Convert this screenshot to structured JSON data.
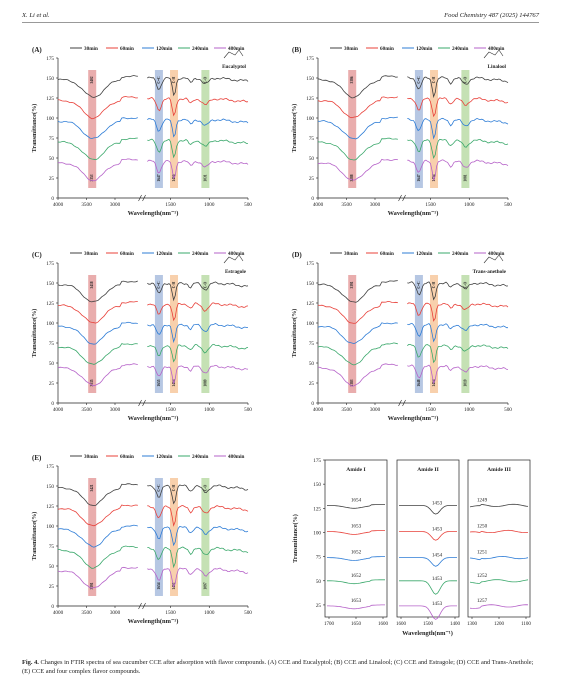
{
  "header": {
    "left": "X. Li et al.",
    "right": "Food Chemistry 487 (2025) 144767"
  },
  "legend_times": [
    "30min",
    "60min",
    "120min",
    "240min",
    "480min"
  ],
  "colors": {
    "series": [
      "#404040",
      "#e8413a",
      "#2d7cd6",
      "#3aa86b",
      "#b663c9"
    ],
    "band_red": "#d45b5b",
    "band_blue": "#6e90c8",
    "band_orange": "#f2a25a",
    "band_green": "#8cc46a"
  },
  "axis": {
    "ylabel": "Transmittance(%)",
    "xlabel": "Wavelength(nm⁻¹)",
    "yticks": [
      "0",
      "25",
      "50",
      "75",
      "100",
      "125",
      "150",
      "175"
    ],
    "xticks_left": [
      "4000",
      "3500",
      "3000"
    ],
    "xticks_right": [
      "1500",
      "1000",
      "500"
    ]
  },
  "panels": [
    {
      "letter": "(A)",
      "compound": "Eucalyptol",
      "oh_top": "3402",
      "oh_bot": "3353",
      "c1_top": "C=C",
      "c1_bot": "1647",
      "c2_top": "C-H",
      "c2_bot": "1456",
      "c3_top": "C-O",
      "c3_bot": "1031"
    },
    {
      "letter": "(B)",
      "compound": "Linalool",
      "oh_top": "3386",
      "oh_bot": "3288",
      "c1_top": "C=C",
      "c1_bot": "1647",
      "c2_top": "C-H",
      "c2_bot": "1454",
      "c3_top": "C-O",
      "c3_bot": "1081"
    },
    {
      "letter": "(C)",
      "compound": "Estragole",
      "oh_top": "3418",
      "oh_bot": "3335",
      "c1_top": "C=C",
      "c1_bot": "1655",
      "c2_top": "C-H",
      "c2_bot": "1454",
      "c3_top": "C-O",
      "c3_bot": "1089"
    },
    {
      "letter": "(D)",
      "compound": "Trans-anethole",
      "oh_top": "3391",
      "oh_bot": "3383",
      "c1_top": "C=C",
      "c1_bot": "1648",
      "c2_top": "C-H",
      "c2_bot": "1454",
      "c3_top": "C-O",
      "c3_bot": "1019"
    },
    {
      "letter": "(E)",
      "compound": "",
      "oh_top": "3421",
      "oh_bot": "3391",
      "c1_top": "C=C",
      "c1_bot": "1654",
      "c2_top": "C-H",
      "c2_bot": "1452",
      "c3_top": "C-O",
      "c3_bot": "1097"
    }
  ],
  "amide": {
    "titles": [
      "Amide I",
      "Amide II",
      "Amide III"
    ],
    "values": [
      [
        "1654",
        "1653",
        "1652",
        "1652",
        "1653"
      ],
      [
        "1453",
        "1453",
        "1454",
        "1453",
        "1453"
      ],
      [
        "1249",
        "1250",
        "1251",
        "1252",
        "1257"
      ]
    ],
    "xticks": [
      [
        "1700",
        "1650",
        "1600"
      ],
      [
        "1600",
        "1500",
        "1400"
      ],
      [
        "1300",
        "1200",
        "1100"
      ]
    ],
    "yticks": [
      "25",
      "50",
      "75",
      "100",
      "125",
      "150",
      "175"
    ],
    "ylabel": "Transmittance(%)",
    "xlabel": "Wavelength(nm⁻¹)"
  },
  "caption": {
    "label": "Fig. 4.",
    "text": " Changes in FTIR spectra of sea cucumber CCE after adsorption with flavor compounds. (A) CCE and Eucalyptol; (B) CCE and Linalool; (C) CCE and Estragole; (D) CCE and Trans-Anethole; (E) CCE and four complex flavor compounds."
  }
}
